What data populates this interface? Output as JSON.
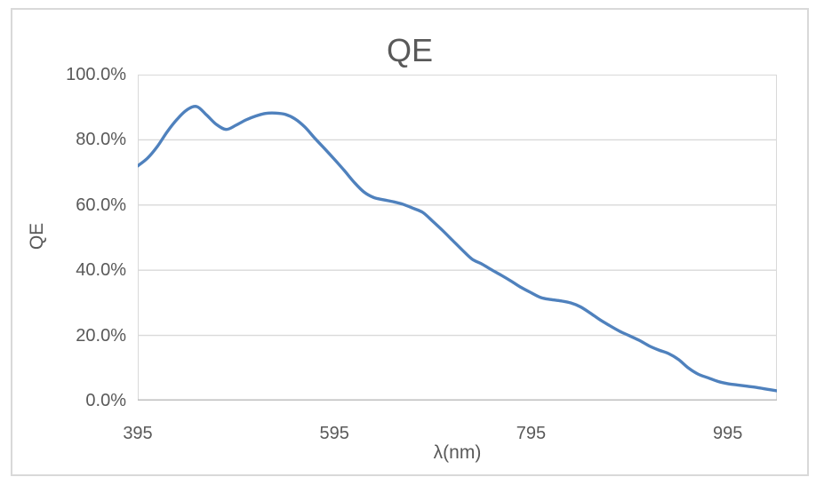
{
  "chart": {
    "title": "QE",
    "x_axis_title": "λ(nm)",
    "y_axis_title": "QE",
    "y_ticks": [
      "100.0%",
      "80.0%",
      "60.0%",
      "40.0%",
      "20.0%",
      "0.0%"
    ],
    "y_tick_values": [
      100,
      80,
      60,
      40,
      20,
      0
    ],
    "x_ticks": [
      "395",
      "595",
      "795",
      "995"
    ],
    "x_tick_values": [
      395,
      595,
      795,
      995
    ]
  },
  "chart_data": {
    "type": "line",
    "title": "QE",
    "xlabel": "λ(nm)",
    "ylabel": "QE",
    "x_unit": "nm",
    "y_unit": "%",
    "xlim": [
      395,
      1045
    ],
    "ylim": [
      0,
      100
    ],
    "y_tick_step": 20,
    "grid": "horizontal",
    "legend": "none",
    "smooth": true,
    "x": [
      395,
      405,
      415,
      425,
      435,
      445,
      455,
      465,
      475,
      485,
      495,
      505,
      515,
      525,
      535,
      545,
      555,
      565,
      575,
      585,
      595,
      605,
      615,
      625,
      635,
      645,
      655,
      665,
      675,
      685,
      695,
      705,
      715,
      725,
      735,
      745,
      755,
      765,
      775,
      785,
      795,
      805,
      815,
      825,
      835,
      845,
      855,
      865,
      875,
      885,
      895,
      905,
      915,
      925,
      935,
      945,
      955,
      965,
      975,
      985,
      995,
      1005,
      1015,
      1025,
      1035,
      1045
    ],
    "series": [
      {
        "name": "QE",
        "values": [
          72.0,
          74.4,
          78.0,
          82.5,
          86.3,
          89.2,
          90.2,
          87.6,
          84.7,
          83.2,
          84.5,
          86.1,
          87.3,
          88.1,
          88.2,
          87.8,
          86.4,
          83.9,
          80.5,
          77.3,
          74.0,
          70.6,
          67.0,
          64.0,
          62.3,
          61.6,
          61.0,
          60.2,
          59.0,
          57.7,
          55.0,
          52.2,
          49.2,
          46.2,
          43.4,
          41.9,
          40.1,
          38.4,
          36.6,
          34.7,
          33.1,
          31.6,
          31.0,
          30.6,
          30.0,
          28.8,
          26.9,
          24.8,
          23.0,
          21.3,
          19.9,
          18.5,
          16.8,
          15.5,
          14.4,
          12.6,
          10.0,
          8.1,
          7.0,
          5.9,
          5.2,
          4.8,
          4.4,
          4.0,
          3.5,
          3.0
        ]
      }
    ]
  },
  "colors": {
    "series_line": "#4F81BD",
    "text": "#595959",
    "gridline": "#D9D9D9",
    "plot_border": "#D9D9D9",
    "axis_line": "#BFBFBF",
    "chart_border": "#D9D9D9",
    "background": "#FFFFFF"
  }
}
